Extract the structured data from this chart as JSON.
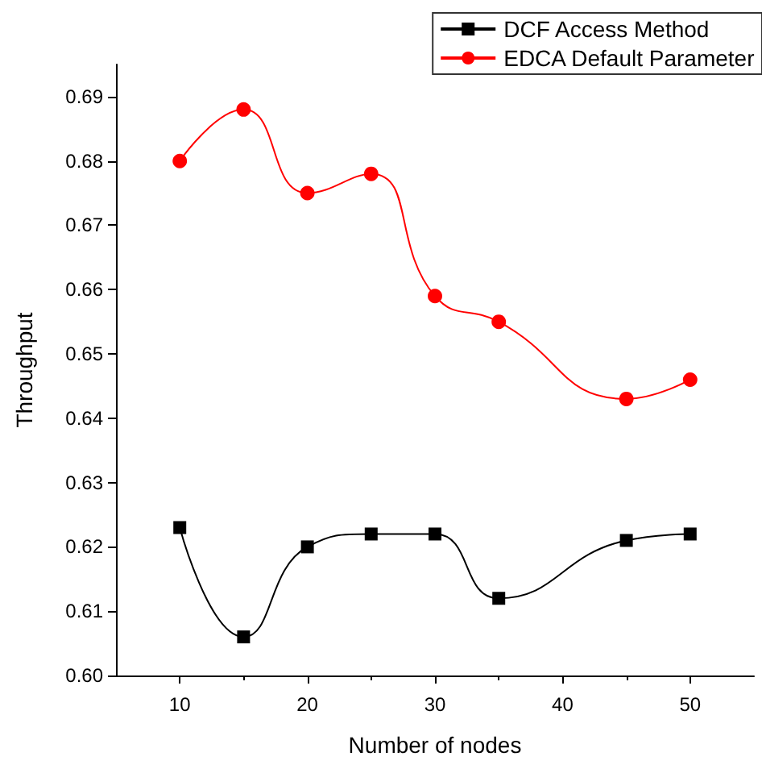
{
  "chart_data": {
    "type": "line",
    "xlabel": "Number of nodes",
    "ylabel": "Throughput",
    "x": [
      10,
      15,
      20,
      25,
      30,
      35,
      45,
      50
    ],
    "series": [
      {
        "name": "DCF Access Method",
        "color": "#000000",
        "marker": "square",
        "values": [
          0.623,
          0.606,
          0.62,
          0.622,
          0.622,
          0.612,
          0.621,
          0.622
        ]
      },
      {
        "name": "EDCA Default Parameter",
        "color": "#ff0000",
        "marker": "circle",
        "values": [
          0.68,
          0.688,
          0.675,
          0.678,
          0.659,
          0.655,
          0.643,
          0.646
        ]
      }
    ],
    "xlim": [
      5,
      55
    ],
    "xticks": [
      10,
      20,
      30,
      40,
      50
    ],
    "ylim": [
      0.6,
      0.695
    ],
    "yticks": [
      {
        "value": 0.6,
        "label": "0.60"
      },
      {
        "value": 0.61,
        "label": "0.61"
      },
      {
        "value": 0.62,
        "label": "0.62"
      },
      {
        "value": 0.63,
        "label": "0.63"
      },
      {
        "value": 0.64,
        "label": "0.64"
      },
      {
        "value": 0.65,
        "label": "0.65"
      },
      {
        "value": 0.66,
        "label": "0.66"
      },
      {
        "value": 0.67,
        "label": "0.67"
      },
      {
        "value": 0.68,
        "label": "0.68"
      },
      {
        "value": 0.69,
        "label": "0.69"
      }
    ],
    "grid": false,
    "legend": "top right",
    "line_style": "solid"
  }
}
